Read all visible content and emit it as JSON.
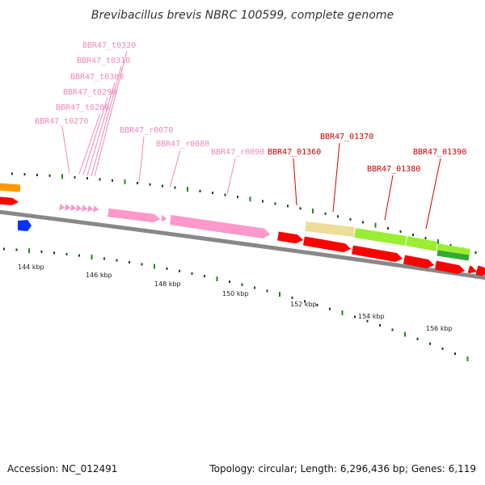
{
  "title": "Brevibacillus brevis NBRC 100599, complete genome",
  "footer": {
    "accession": "Accession: NC_012491",
    "summary": "Topology: circular; Length: 6,296,436 bp; Genes: 6,119"
  },
  "colors": {
    "trna": "#ff99cc",
    "rrna": "#ff99cc",
    "cds": "#ff0000",
    "label_rna": "#ee88bb",
    "label_cds": "#cc0000",
    "tan": "#eedd99",
    "lime": "#99ee33",
    "dark_green": "#33aa33",
    "orange": "#ff9900",
    "blue": "#0033ff",
    "backbone": "#888888",
    "tick": "#228822"
  },
  "gene_labels": [
    {
      "name": "BBR47_t0320",
      "kind": "rna"
    },
    {
      "name": "BBR47_t0310",
      "kind": "rna"
    },
    {
      "name": "BBR47_t0300",
      "kind": "rna"
    },
    {
      "name": "BBR47_t0290",
      "kind": "rna"
    },
    {
      "name": "BBR47_t0280",
      "kind": "rna"
    },
    {
      "name": "BBR47_t0270",
      "kind": "rna"
    },
    {
      "name": "BBR47_r0070",
      "kind": "rna"
    },
    {
      "name": "BBR47_r0080",
      "kind": "rna"
    },
    {
      "name": "BBR47_r0090",
      "kind": "rna"
    },
    {
      "name": "BBR47_01360",
      "kind": "cds"
    },
    {
      "name": "BBR47_01370",
      "kind": "cds"
    },
    {
      "name": "BBR47_01380",
      "kind": "cds"
    },
    {
      "name": "BBR47_01390",
      "kind": "cds"
    }
  ],
  "kbp_labels": [
    "144 kbp",
    "146 kbp",
    "148 kbp",
    "150 kbp",
    "152 kbp",
    "154 kbp",
    "156 kbp"
  ]
}
